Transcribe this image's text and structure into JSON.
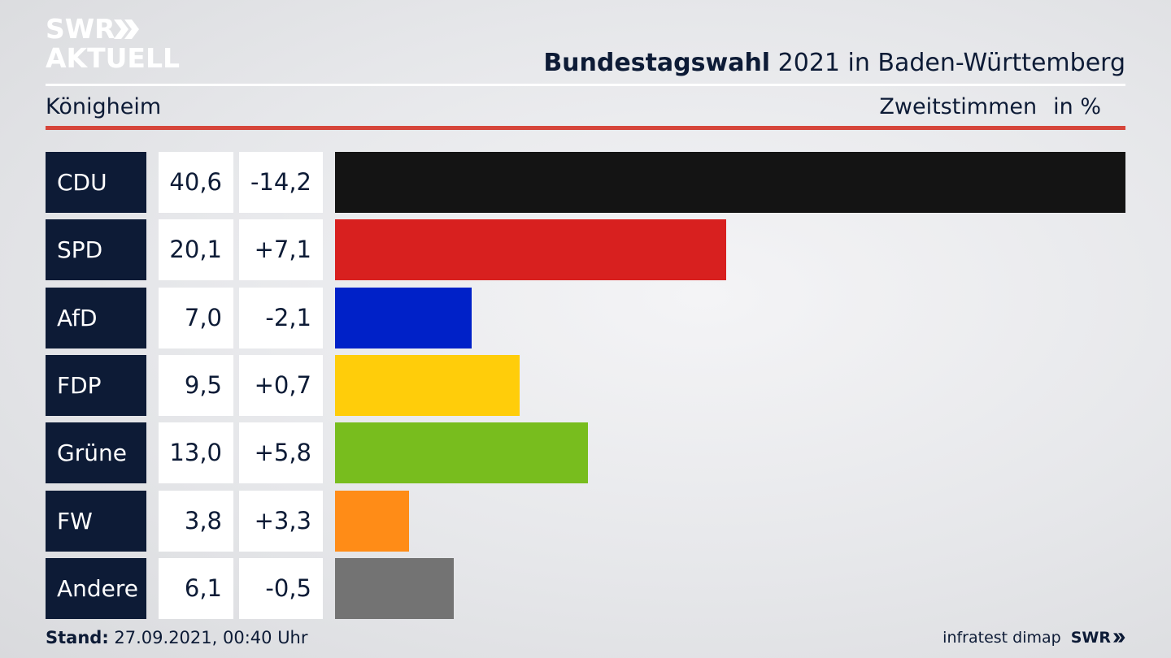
{
  "logo": {
    "line1": "SWR",
    "line2": "AKTUELL"
  },
  "header": {
    "title_bold": "Bundestagswahl",
    "title_rest": "2021 in Baden-Württemberg",
    "location": "Königheim",
    "measure": "Zweitstimmen",
    "unit": "in %"
  },
  "colors": {
    "navy": "#0d1b36",
    "red_rule": "#d6453a"
  },
  "chart_data": {
    "type": "bar",
    "orientation": "horizontal",
    "categories": [
      "CDU",
      "SPD",
      "AfD",
      "FDP",
      "Grüne",
      "FW",
      "Andere"
    ],
    "values": [
      40.6,
      20.1,
      7.0,
      9.5,
      13.0,
      3.8,
      6.1
    ],
    "values_display": [
      "40,6",
      "20,1",
      "7,0",
      "9,5",
      "13,0",
      "3,8",
      "6,1"
    ],
    "diffs_display": [
      "-14,2",
      "+7,1",
      "-2,1",
      "+0,7",
      "+5,8",
      "+3,3",
      "-0,5"
    ],
    "colors": [
      "#141414",
      "#d8201f",
      "#0021c8",
      "#ffcd0a",
      "#78bd1e",
      "#ff8c17",
      "#737373"
    ],
    "xlim": [
      0,
      40.6
    ],
    "grid": false,
    "legend": "none"
  },
  "footer": {
    "stand_label": "Stand:",
    "stand_value": "27.09.2021, 00:40 Uhr",
    "source": "infratest dimap",
    "brand": "SWR"
  }
}
